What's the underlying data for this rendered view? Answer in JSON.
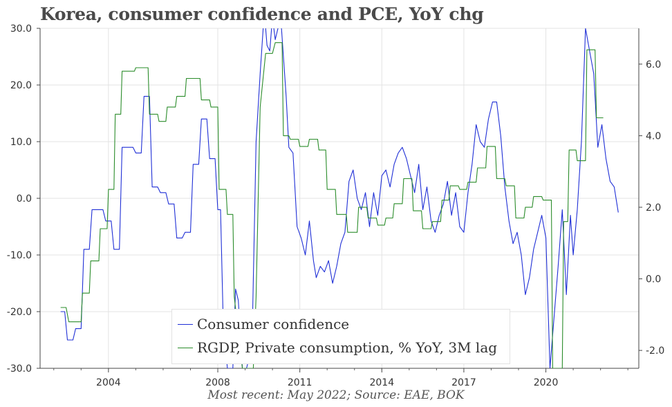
{
  "title": "Korea, consumer confidence and PCE, YoY chg",
  "footer": "Most recent: May 2022; Source: EAE, BOK",
  "chart_data": {
    "type": "line",
    "title": "Korea, consumer confidence and PCE, YoY chg",
    "x_tick_labels": [
      "2004",
      "2008",
      "2011",
      "2014",
      "2017",
      "2020"
    ],
    "x_tick_years": [
      2004,
      2008,
      2011,
      2014,
      2017,
      2020
    ],
    "xlim": [
      2001.5,
      2023.4
    ],
    "y_left": {
      "ylim": [
        -30,
        30
      ],
      "ticks": [
        -30,
        -20,
        -10,
        0,
        10,
        20,
        30
      ],
      "tick_labels": [
        "-30.0",
        "-20.0",
        "-10.0",
        "0.0",
        "10.0",
        "20.0",
        "30.0"
      ]
    },
    "y_right": {
      "ylim": [
        -2.5,
        7
      ],
      "ticks": [
        -2,
        0,
        2,
        4,
        6
      ],
      "tick_labels": [
        "-2.0",
        "0.0",
        "2.0",
        "4.0",
        "6.0"
      ]
    },
    "grid": true,
    "legend_position": "bottom-center",
    "series": [
      {
        "name": "Consumer confidence",
        "axis": "left",
        "color": "#1f2fd6",
        "points": [
          [
            2002.25,
            -20
          ],
          [
            2002.4,
            -20
          ],
          [
            2002.5,
            -25
          ],
          [
            2002.7,
            -25
          ],
          [
            2002.8,
            -23
          ],
          [
            2003.0,
            -23
          ],
          [
            2003.1,
            -9
          ],
          [
            2003.3,
            -9
          ],
          [
            2003.4,
            -2
          ],
          [
            2003.8,
            -2
          ],
          [
            2003.9,
            -4
          ],
          [
            2004.1,
            -4
          ],
          [
            2004.2,
            -9
          ],
          [
            2004.4,
            -9
          ],
          [
            2004.5,
            9
          ],
          [
            2004.9,
            9
          ],
          [
            2005.0,
            8
          ],
          [
            2005.2,
            8
          ],
          [
            2005.3,
            18
          ],
          [
            2005.5,
            18
          ],
          [
            2005.6,
            2
          ],
          [
            2005.8,
            2
          ],
          [
            2005.9,
            1
          ],
          [
            2006.1,
            1
          ],
          [
            2006.2,
            -1
          ],
          [
            2006.4,
            -1
          ],
          [
            2006.5,
            -7
          ],
          [
            2006.7,
            -7
          ],
          [
            2006.8,
            -6
          ],
          [
            2007.0,
            -6
          ],
          [
            2007.1,
            6
          ],
          [
            2007.3,
            6
          ],
          [
            2007.4,
            14
          ],
          [
            2007.6,
            14
          ],
          [
            2007.7,
            7
          ],
          [
            2007.9,
            7
          ],
          [
            2008.0,
            -2
          ],
          [
            2008.1,
            -2
          ],
          [
            2008.2,
            -22
          ],
          [
            2008.35,
            -30
          ],
          [
            2008.45,
            -30
          ],
          [
            2008.55,
            -30
          ],
          [
            2008.65,
            -16
          ],
          [
            2008.75,
            -18
          ],
          [
            2008.9,
            -30
          ],
          [
            2009.05,
            -30
          ],
          [
            2009.25,
            -26
          ],
          [
            2009.4,
            10
          ],
          [
            2009.55,
            22
          ],
          [
            2009.7,
            33
          ],
          [
            2009.8,
            27
          ],
          [
            2009.9,
            26
          ],
          [
            2010.0,
            32
          ],
          [
            2010.1,
            28
          ],
          [
            2010.3,
            32
          ],
          [
            2010.5,
            18
          ],
          [
            2010.6,
            9
          ],
          [
            2010.75,
            8
          ],
          [
            2010.9,
            -5
          ],
          [
            2011.05,
            -7
          ],
          [
            2011.2,
            -10
          ],
          [
            2011.35,
            -4
          ],
          [
            2011.5,
            -11
          ],
          [
            2011.6,
            -14
          ],
          [
            2011.75,
            -12
          ],
          [
            2011.9,
            -13
          ],
          [
            2012.05,
            -11
          ],
          [
            2012.2,
            -15
          ],
          [
            2012.35,
            -12
          ],
          [
            2012.5,
            -8
          ],
          [
            2012.65,
            -6
          ],
          [
            2012.8,
            3
          ],
          [
            2012.95,
            5
          ],
          [
            2013.1,
            0
          ],
          [
            2013.25,
            -2
          ],
          [
            2013.4,
            1
          ],
          [
            2013.55,
            -5
          ],
          [
            2013.7,
            1
          ],
          [
            2013.85,
            -3
          ],
          [
            2014.0,
            4
          ],
          [
            2014.15,
            5
          ],
          [
            2014.3,
            2
          ],
          [
            2014.45,
            6
          ],
          [
            2014.6,
            8
          ],
          [
            2014.75,
            9
          ],
          [
            2014.9,
            7
          ],
          [
            2015.05,
            4
          ],
          [
            2015.2,
            1
          ],
          [
            2015.35,
            6
          ],
          [
            2015.5,
            -2
          ],
          [
            2015.65,
            2
          ],
          [
            2015.8,
            -4
          ],
          [
            2015.95,
            -6
          ],
          [
            2016.1,
            -3
          ],
          [
            2016.25,
            -1
          ],
          [
            2016.4,
            3
          ],
          [
            2016.55,
            -3
          ],
          [
            2016.7,
            1
          ],
          [
            2016.85,
            -5
          ],
          [
            2017.0,
            -6
          ],
          [
            2017.15,
            1
          ],
          [
            2017.3,
            6
          ],
          [
            2017.45,
            13
          ],
          [
            2017.6,
            10
          ],
          [
            2017.75,
            9
          ],
          [
            2017.9,
            14
          ],
          [
            2018.05,
            17
          ],
          [
            2018.2,
            17
          ],
          [
            2018.35,
            11
          ],
          [
            2018.5,
            2
          ],
          [
            2018.65,
            -4
          ],
          [
            2018.8,
            -8
          ],
          [
            2018.95,
            -6
          ],
          [
            2019.1,
            -10
          ],
          [
            2019.25,
            -17
          ],
          [
            2019.4,
            -14
          ],
          [
            2019.55,
            -9
          ],
          [
            2019.7,
            -6
          ],
          [
            2019.85,
            -3
          ],
          [
            2020.0,
            -7
          ],
          [
            2020.15,
            -30
          ],
          [
            2020.3,
            -21
          ],
          [
            2020.45,
            -12
          ],
          [
            2020.6,
            -2
          ],
          [
            2020.75,
            -17
          ],
          [
            2020.9,
            -3
          ],
          [
            2021.0,
            -10
          ],
          [
            2021.15,
            -2
          ],
          [
            2021.3,
            10
          ],
          [
            2021.45,
            30
          ],
          [
            2021.6,
            26
          ],
          [
            2021.75,
            22
          ],
          [
            2021.9,
            9
          ],
          [
            2022.05,
            13
          ],
          [
            2022.2,
            7
          ],
          [
            2022.35,
            3
          ],
          [
            2022.5,
            2
          ],
          [
            2022.65,
            -2.5
          ]
        ]
      },
      {
        "name": "RGDP, Private consumption, % YoY, 3M lag",
        "axis": "right",
        "color": "#2a8c2a",
        "points": [
          [
            2002.25,
            -0.8
          ],
          [
            2002.45,
            -0.8
          ],
          [
            2002.55,
            -1.2
          ],
          [
            2003.0,
            -1.2
          ],
          [
            2003.05,
            -0.4
          ],
          [
            2003.3,
            -0.4
          ],
          [
            2003.35,
            0.5
          ],
          [
            2003.65,
            0.5
          ],
          [
            2003.7,
            1.4
          ],
          [
            2003.95,
            1.4
          ],
          [
            2004.0,
            2.5
          ],
          [
            2004.2,
            2.5
          ],
          [
            2004.25,
            4.6
          ],
          [
            2004.45,
            4.6
          ],
          [
            2004.5,
            5.8
          ],
          [
            2004.95,
            5.8
          ],
          [
            2005.0,
            5.9
          ],
          [
            2005.45,
            5.9
          ],
          [
            2005.5,
            4.6
          ],
          [
            2005.8,
            4.6
          ],
          [
            2005.85,
            4.4
          ],
          [
            2006.1,
            4.4
          ],
          [
            2006.15,
            4.8
          ],
          [
            2006.45,
            4.8
          ],
          [
            2006.5,
            5.1
          ],
          [
            2006.8,
            5.1
          ],
          [
            2006.85,
            5.6
          ],
          [
            2007.35,
            5.6
          ],
          [
            2007.4,
            5.0
          ],
          [
            2007.7,
            5.0
          ],
          [
            2007.75,
            4.8
          ],
          [
            2008.0,
            4.8
          ],
          [
            2008.05,
            2.5
          ],
          [
            2008.3,
            2.5
          ],
          [
            2008.35,
            1.8
          ],
          [
            2008.55,
            1.8
          ],
          [
            2008.6,
            -0.5
          ],
          [
            2008.9,
            -2.5
          ],
          [
            2009.3,
            -2.5
          ],
          [
            2009.4,
            -0.5
          ],
          [
            2009.55,
            4.8
          ],
          [
            2009.75,
            6.3
          ],
          [
            2010.0,
            6.3
          ],
          [
            2010.1,
            6.6
          ],
          [
            2010.35,
            6.6
          ],
          [
            2010.4,
            4.0
          ],
          [
            2010.6,
            4.0
          ],
          [
            2010.65,
            3.9
          ],
          [
            2010.95,
            3.9
          ],
          [
            2011.0,
            3.7
          ],
          [
            2011.3,
            3.7
          ],
          [
            2011.35,
            3.9
          ],
          [
            2011.65,
            3.9
          ],
          [
            2011.7,
            3.6
          ],
          [
            2011.95,
            3.6
          ],
          [
            2012.0,
            2.5
          ],
          [
            2012.3,
            2.5
          ],
          [
            2012.35,
            1.8
          ],
          [
            2012.7,
            1.8
          ],
          [
            2012.75,
            1.3
          ],
          [
            2013.1,
            1.3
          ],
          [
            2013.15,
            2.0
          ],
          [
            2013.45,
            2.0
          ],
          [
            2013.5,
            1.7
          ],
          [
            2013.8,
            1.7
          ],
          [
            2013.85,
            1.5
          ],
          [
            2014.1,
            1.5
          ],
          [
            2014.15,
            1.7
          ],
          [
            2014.4,
            1.7
          ],
          [
            2014.45,
            2.1
          ],
          [
            2014.75,
            2.1
          ],
          [
            2014.8,
            2.8
          ],
          [
            2015.1,
            2.8
          ],
          [
            2015.15,
            1.9
          ],
          [
            2015.45,
            1.9
          ],
          [
            2015.5,
            1.4
          ],
          [
            2015.8,
            1.4
          ],
          [
            2015.85,
            1.6
          ],
          [
            2016.15,
            1.6
          ],
          [
            2016.2,
            2.2
          ],
          [
            2016.45,
            2.2
          ],
          [
            2016.5,
            2.6
          ],
          [
            2016.8,
            2.6
          ],
          [
            2016.85,
            2.5
          ],
          [
            2017.1,
            2.5
          ],
          [
            2017.15,
            2.7
          ],
          [
            2017.45,
            2.7
          ],
          [
            2017.5,
            3.1
          ],
          [
            2017.8,
            3.1
          ],
          [
            2017.85,
            3.7
          ],
          [
            2018.15,
            3.7
          ],
          [
            2018.2,
            2.8
          ],
          [
            2018.5,
            2.8
          ],
          [
            2018.55,
            2.6
          ],
          [
            2018.85,
            2.6
          ],
          [
            2018.9,
            1.7
          ],
          [
            2019.2,
            1.7
          ],
          [
            2019.25,
            2.0
          ],
          [
            2019.5,
            2.0
          ],
          [
            2019.55,
            2.3
          ],
          [
            2019.85,
            2.3
          ],
          [
            2019.9,
            2.2
          ],
          [
            2020.2,
            2.2
          ],
          [
            2020.25,
            -2.5
          ],
          [
            2020.6,
            -2.5
          ],
          [
            2020.65,
            1.6
          ],
          [
            2020.8,
            1.6
          ],
          [
            2020.85,
            3.6
          ],
          [
            2021.1,
            3.6
          ],
          [
            2021.15,
            3.3
          ],
          [
            2021.45,
            3.3
          ],
          [
            2021.5,
            6.4
          ],
          [
            2021.8,
            6.4
          ],
          [
            2021.85,
            4.5
          ],
          [
            2022.1,
            4.5
          ]
        ]
      }
    ]
  }
}
